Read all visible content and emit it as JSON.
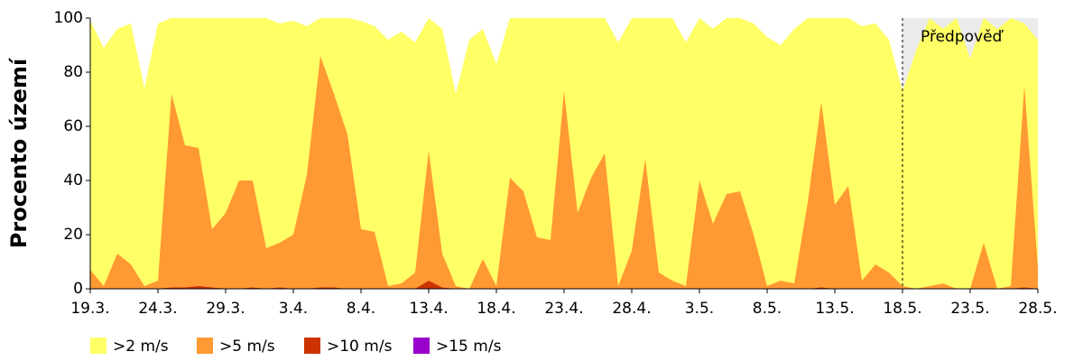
{
  "chart_data": {
    "type": "area",
    "y_label": "Procento území",
    "categories": [
      "19.3.",
      null,
      null,
      null,
      null,
      "24.3.",
      null,
      null,
      null,
      null,
      "29.3.",
      null,
      null,
      null,
      null,
      "3.4.",
      null,
      null,
      null,
      null,
      "8.4.",
      null,
      null,
      null,
      null,
      "13.4.",
      null,
      null,
      null,
      null,
      "18.4.",
      null,
      null,
      null,
      null,
      "23.4.",
      null,
      null,
      null,
      null,
      "28.4.",
      null,
      null,
      null,
      null,
      "3.5.",
      null,
      null,
      null,
      null,
      "8.5.",
      null,
      null,
      null,
      null,
      "13.5.",
      null,
      null,
      null,
      null,
      "18.5.",
      null,
      null,
      null,
      null,
      "23.5.",
      null,
      null,
      null,
      null,
      "28.5."
    ],
    "series": [
      {
        "name": ">2 m/s",
        "color": "#ffff66",
        "values": [
          99,
          89,
          96,
          98,
          74,
          98,
          100,
          100,
          100,
          100,
          100,
          100,
          100,
          100,
          98,
          99,
          97,
          100,
          100,
          100,
          99,
          97,
          92,
          95,
          91,
          100,
          96,
          72,
          92,
          96,
          83,
          100,
          100,
          100,
          100,
          100,
          100,
          100,
          100,
          91,
          100,
          100,
          100,
          100,
          91,
          100,
          96,
          100,
          100,
          98,
          93,
          90,
          96,
          100,
          100,
          100,
          100,
          97,
          98,
          92,
          73,
          88,
          100,
          96,
          100,
          85,
          100,
          96,
          100,
          98,
          92
        ]
      },
      {
        "name": ">5 m/s",
        "color": "#ff9933",
        "values": [
          7,
          1,
          13,
          9,
          1,
          3,
          72,
          53,
          52,
          22,
          28,
          40,
          40,
          15,
          17,
          20,
          42,
          86,
          72,
          57,
          22,
          21,
          1,
          2,
          6,
          51,
          13,
          1,
          0,
          11,
          1,
          41,
          36,
          19,
          18,
          73,
          28,
          41,
          50,
          1,
          14,
          48,
          6,
          3,
          1,
          40,
          24,
          35,
          36,
          20,
          1,
          3,
          2,
          32,
          69,
          31,
          38,
          3,
          9,
          6,
          1,
          0,
          1,
          2,
          0,
          0,
          17,
          0,
          1,
          75,
          8
        ]
      },
      {
        "name": ">10 m/s",
        "color": "#cc3300",
        "values": [
          0,
          0,
          0,
          0,
          0,
          0,
          0.5,
          0.5,
          1,
          0.5,
          0,
          0,
          0.5,
          0,
          0.5,
          0,
          0,
          0.5,
          0.5,
          0,
          0,
          0,
          0,
          0,
          0,
          3,
          0.5,
          0,
          0,
          0,
          0,
          0,
          0,
          0,
          0,
          0,
          0,
          0,
          0,
          0,
          0,
          0,
          0,
          0,
          0,
          0,
          0,
          0,
          0,
          0,
          0,
          0,
          0,
          0,
          0.5,
          0,
          0,
          0,
          0,
          0,
          0,
          0,
          0,
          0,
          0,
          0,
          0,
          0,
          0,
          0.5,
          0
        ]
      },
      {
        "name": ">15 m/s",
        "color": "#9900cc",
        "values": [
          0,
          0,
          0,
          0,
          0,
          0,
          0,
          0,
          0,
          0,
          0,
          0,
          0,
          0,
          0,
          0,
          0,
          0,
          0,
          0,
          0,
          0,
          0,
          0,
          0,
          0,
          0,
          0,
          0,
          0,
          0,
          0,
          0,
          0,
          0,
          0,
          0,
          0,
          0,
          0,
          0,
          0,
          0,
          0,
          0,
          0,
          0,
          0,
          0,
          0,
          0,
          0,
          0,
          0,
          0,
          0,
          0,
          0,
          0,
          0,
          0,
          0,
          0,
          0,
          0,
          0,
          0,
          0,
          0,
          0,
          0
        ]
      }
    ],
    "forecast": {
      "text": "Předpověď",
      "from": "18.5."
    },
    "ylim": [
      0,
      100
    ],
    "yticks": [
      0,
      20,
      40,
      60,
      80,
      100
    ]
  }
}
